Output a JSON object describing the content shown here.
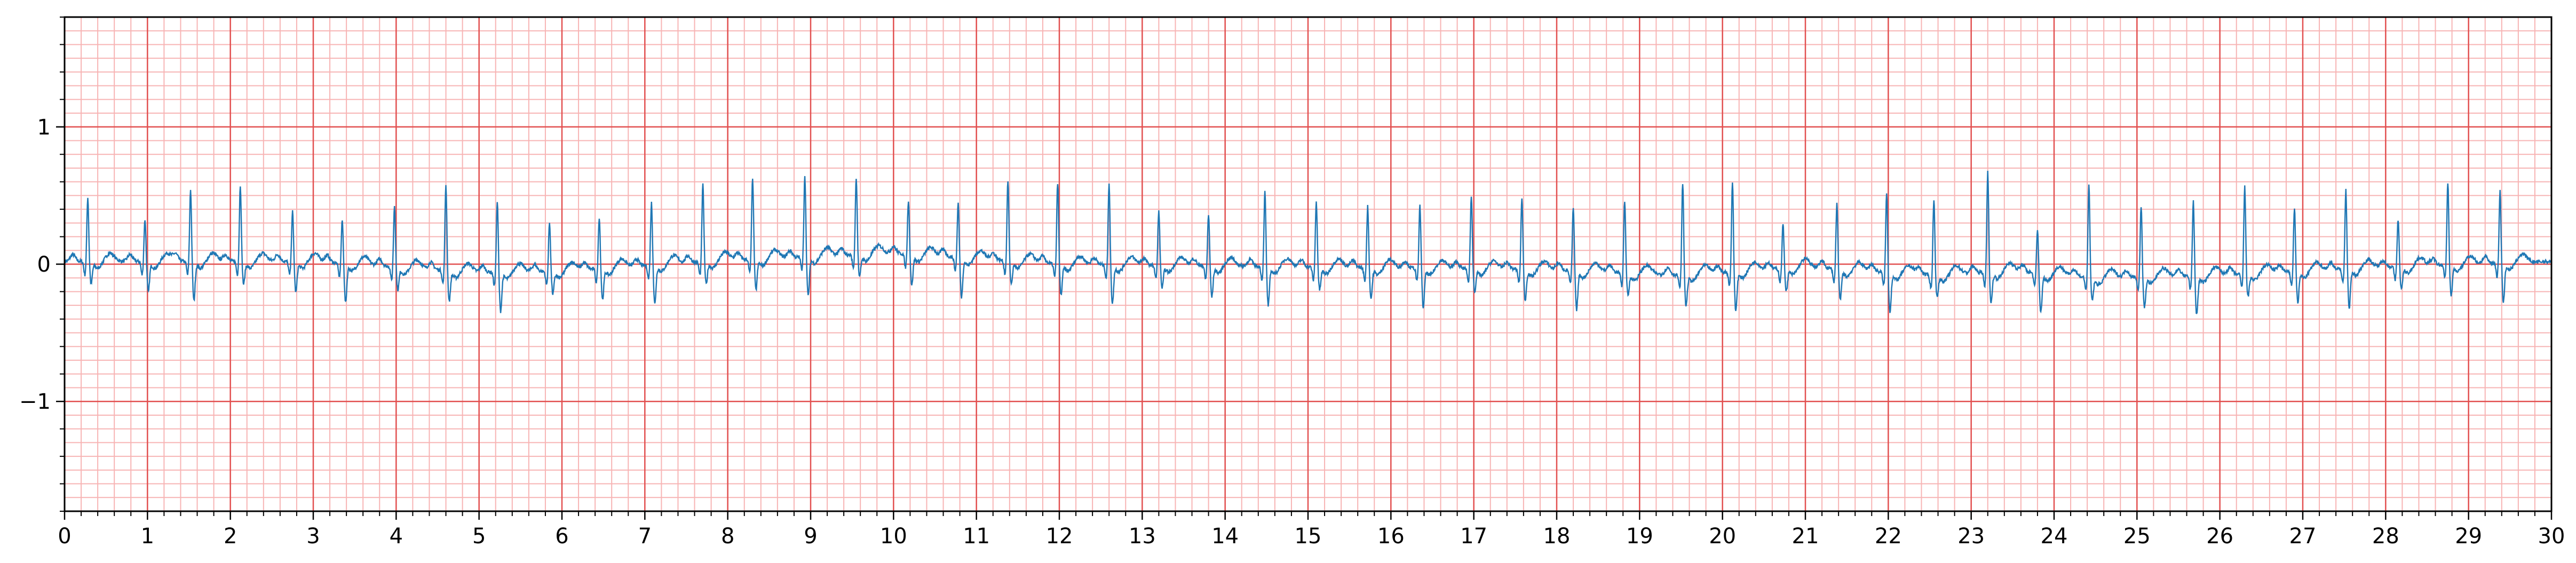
{
  "chart_data": {
    "type": "line",
    "title": "",
    "xlabel": "",
    "ylabel": "",
    "xlim": [
      0,
      30
    ],
    "ylim": [
      -1.8,
      1.8
    ],
    "x_ticks": [
      0,
      1,
      2,
      3,
      4,
      5,
      6,
      7,
      8,
      9,
      10,
      11,
      12,
      13,
      14,
      15,
      16,
      17,
      18,
      19,
      20,
      21,
      22,
      23,
      24,
      25,
      26,
      27,
      28,
      29,
      30
    ],
    "x_tick_labels": [
      "0",
      "1",
      "2",
      "3",
      "4",
      "5",
      "6",
      "7",
      "8",
      "9",
      "10",
      "11",
      "12",
      "13",
      "14",
      "15",
      "16",
      "17",
      "18",
      "19",
      "20",
      "21",
      "22",
      "23",
      "24",
      "25",
      "26",
      "27",
      "28",
      "29",
      "30"
    ],
    "y_ticks": [
      -1,
      0,
      1
    ],
    "y_tick_labels": [
      "−1",
      "0",
      "1"
    ],
    "grid": {
      "major": true,
      "minor": true,
      "major_x_step": 1,
      "major_y_step": 1,
      "minor_x_step": 0.2,
      "minor_y_step": 0.1,
      "major_color": "#e25050",
      "minor_color": "#f7b4b4"
    },
    "line_color": "#1f77b4",
    "beat_times": [
      0.28,
      0.97,
      1.52,
      2.12,
      2.75,
      3.35,
      3.98,
      4.6,
      5.22,
      5.85,
      6.45,
      7.08,
      7.7,
      8.3,
      8.93,
      9.55,
      10.18,
      10.78,
      11.38,
      11.98,
      12.6,
      13.2,
      13.8,
      14.48,
      15.1,
      15.72,
      16.35,
      16.97,
      17.58,
      18.2,
      18.82,
      19.52,
      20.12,
      20.73,
      21.38,
      21.98,
      22.55,
      23.2,
      23.8,
      24.42,
      25.05,
      25.68,
      26.3,
      26.9,
      27.52,
      28.15,
      28.75,
      29.38
    ],
    "beat_amplitudes": [
      0.47,
      0.31,
      0.53,
      0.56,
      0.37,
      0.32,
      0.45,
      0.63,
      0.52,
      0.36,
      0.38,
      0.46,
      0.57,
      0.6,
      0.6,
      0.57,
      0.4,
      0.4,
      0.59,
      0.6,
      0.6,
      0.4,
      0.38,
      0.55,
      0.48,
      0.45,
      0.46,
      0.54,
      0.53,
      0.46,
      0.53,
      0.68,
      0.66,
      0.33,
      0.48,
      0.58,
      0.56,
      0.74,
      0.32,
      0.68,
      0.52,
      0.55,
      0.64,
      0.47,
      0.58,
      0.35,
      0.61,
      0.53
    ],
    "baseline_drift": [
      [
        0,
        0.02
      ],
      [
        3,
        0.02
      ],
      [
        5,
        -0.06
      ],
      [
        6,
        -0.05
      ],
      [
        8,
        0.03
      ],
      [
        10,
        0.08
      ],
      [
        12,
        0.0
      ],
      [
        15,
        -0.02
      ],
      [
        18,
        -0.04
      ],
      [
        19.5,
        -0.08
      ],
      [
        21,
        -0.02
      ],
      [
        22.5,
        -0.08
      ],
      [
        23.5,
        -0.05
      ],
      [
        24.5,
        -0.1
      ],
      [
        26,
        -0.08
      ],
      [
        28,
        -0.02
      ],
      [
        30,
        0.02
      ]
    ]
  }
}
